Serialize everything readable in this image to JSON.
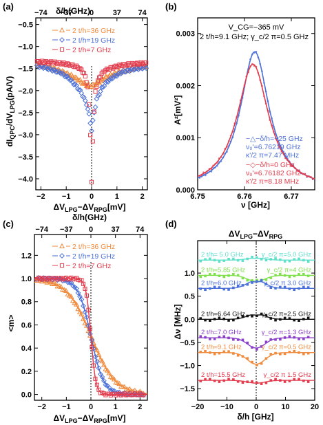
{
  "chart_data": [
    {
      "panel": "(a)",
      "type": "scatter",
      "xlabel": "ΔV_LPG−ΔV_RPG[mV]",
      "ylabel": "dI_QPC/dV_LPG(pA/V)",
      "top_label": "δ/h(GHz)",
      "top_ticks": [
        "−74",
        "−37",
        "0",
        "37",
        "74"
      ],
      "x_ticks": [
        "−2",
        "−1",
        "0",
        "1",
        "2"
      ],
      "y_ticks": [
        "−4.0",
        "−3.5",
        "−3.0",
        "−2.5",
        "−2.0",
        "−1.5",
        "−1.0",
        "−0.5"
      ],
      "xlim": [
        -2.2,
        2.2
      ],
      "ylim": [
        -4.25,
        -0.35
      ],
      "legend_position": "top-right",
      "series": [
        {
          "name": "2 t/h=36 GHz",
          "marker": "triangle",
          "color": "#f08a3c",
          "x": [
            -2.0,
            -1.6,
            -1.2,
            -0.8,
            -0.5,
            -0.3,
            -0.15,
            0,
            0.15,
            0.3,
            0.5,
            0.8,
            1.2,
            1.6,
            2.0
          ],
          "y": [
            -1.42,
            -1.48,
            -1.56,
            -1.66,
            -1.76,
            -1.84,
            -1.88,
            -1.9,
            -1.85,
            -1.8,
            -1.72,
            -1.64,
            -1.56,
            -1.5,
            -1.45
          ]
        },
        {
          "name": "2 t/h=19 GHz",
          "marker": "diamond",
          "color": "#4a6fd8",
          "x": [
            -2.0,
            -1.6,
            -1.2,
            -0.9,
            -0.6,
            -0.4,
            -0.2,
            -0.1,
            0,
            0.1,
            0.2,
            0.4,
            0.6,
            0.9,
            1.2,
            1.6,
            2.0
          ],
          "y": [
            -1.45,
            -1.52,
            -1.6,
            -1.72,
            -1.9,
            -2.05,
            -2.3,
            -2.55,
            -2.9,
            -2.5,
            -2.2,
            -1.95,
            -1.8,
            -1.68,
            -1.58,
            -1.52,
            -1.48
          ]
        },
        {
          "name": "2 t/h=7 GHz",
          "marker": "square",
          "color": "#e23b4c",
          "x": [
            -2.0,
            -1.6,
            -1.2,
            -0.8,
            -0.5,
            -0.3,
            -0.15,
            -0.07,
            0,
            0.07,
            0.15,
            0.3,
            0.5,
            0.8,
            1.2,
            1.6,
            2.0
          ],
          "y": [
            -1.35,
            -1.36,
            -1.38,
            -1.42,
            -1.48,
            -1.6,
            -1.9,
            -2.6,
            -4.05,
            -2.8,
            -2.0,
            -1.7,
            -1.55,
            -1.48,
            -1.42,
            -1.4,
            -1.38
          ]
        }
      ]
    },
    {
      "panel": "(b)",
      "type": "line",
      "xlabel": "ν [GHz]",
      "ylabel": "A²[mV²]",
      "x_ticks": [
        "6.75",
        "6.76",
        "6.77"
      ],
      "y_ticks": [
        "0.000",
        "0.001",
        "0.002",
        "0.003"
      ],
      "xlim": [
        6.75,
        6.775
      ],
      "ylim": [
        0,
        0.0033
      ],
      "annotation_lines": [
        "V_CG=−365 mV",
        "2 t/h=9.1 GHz; γ_c/2 π=0.5 GHz"
      ],
      "legend_position": "bottom-right",
      "series": [
        {
          "name": "−△−δ/h=−25 GHz",
          "color": "#4a6fd8",
          "center": 6.76219,
          "width_mhz": 7.47,
          "peak": 0.00265,
          "text_lines": [
            "−△−δ/h=−25 GHz",
            "ν₀'=6.76219 GHz",
            "κ'/2 π=7.47 MHz"
          ]
        },
        {
          "name": "−◇−δ/h=0 GHz",
          "color": "#e23b4c",
          "center": 6.76182,
          "width_mhz": 8.18,
          "peak": 0.00241,
          "text_lines": [
            "−◇−δ/h=0 GHz",
            "ν₀'=6.76182 GHz",
            "κ'/2 π=8.18 MHz"
          ]
        }
      ]
    },
    {
      "panel": "(c)",
      "type": "scatter",
      "xlabel": "ΔV_LPG−ΔV_RPG[mV]",
      "ylabel": "<m>",
      "top_label": "δ/h(GHz)",
      "top_ticks": [
        "−74",
        "−37",
        "0",
        "37",
        "74"
      ],
      "x_ticks": [
        "−2",
        "−1",
        "0",
        "1",
        "2"
      ],
      "y_ticks": [
        "0.0",
        "0.2",
        "0.4",
        "0.6",
        "0.8",
        "1.0",
        "1.2"
      ],
      "xlim": [
        -2.3,
        2.3
      ],
      "ylim": [
        -0.05,
        1.38
      ],
      "legend_position": "top-right",
      "series": [
        {
          "name": "2 t/h=36 GHz",
          "marker": "triangle",
          "color": "#f08a3c",
          "half_width_mv": 0.49
        },
        {
          "name": "2 t/h=19 GHz",
          "marker": "diamond",
          "color": "#4a6fd8",
          "half_width_mv": 0.26
        },
        {
          "name": "2 t/h=7 GHz",
          "marker": "square",
          "color": "#e23b4c",
          "half_width_mv": 0.1
        }
      ]
    },
    {
      "panel": "(d)",
      "type": "line",
      "title": "ΔV_LPG−ΔV_RPG",
      "xlabel": "δ/h [GHz]",
      "ylabel": "Δν [MHz]",
      "x_ticks": [
        "−20",
        "−10",
        "0",
        "10",
        "20"
      ],
      "y_ticks": [
        "−1.5",
        "−1.0",
        "−0.5",
        "0.0",
        "0.5",
        "1.0"
      ],
      "xlim": [
        -20,
        20
      ],
      "ylim": [
        -1.75,
        1.7
      ],
      "series": [
        {
          "label_left": "2 t/h= 5.0 GHz",
          "label_right": "γ_c/2 π=5.0 GHz",
          "color": "#5fe0cc",
          "offset": 1.28,
          "amp": 0.05
        },
        {
          "label_left": "2 t/h=5.85 GHz",
          "label_right": "γ_c/2 π=4 GHz",
          "color": "#7ee04a",
          "offset": 0.95,
          "amp": -0.13
        },
        {
          "label_left": "2 t/h=6.0 GHz",
          "label_right": "γ_c/2 π  3.0 GHz",
          "color": "#4a6fd8",
          "offset": 0.67,
          "amp": 0.18
        },
        {
          "label_left": "2 t/h=6.64 GHz",
          "label_right": "γ_c/2 π=2.5 GHz",
          "color": "#111111",
          "offset": 0.0,
          "amp": 0.12
        },
        {
          "label_left": "2 t/h=7.0 GHz",
          "label_right": "γ_c/2 π=1.3 GHz",
          "color": "#8b3fc8",
          "offset": -0.4,
          "amp": -0.22
        },
        {
          "label_left": "2 t/h=9.1 GHz",
          "label_right": "γ_c/2 π=0.5 GHz",
          "color": "#f08a3c",
          "offset": -0.72,
          "amp": -0.25
        },
        {
          "label_left": "2 t/h=15.5 GHz",
          "label_right": "γ_c/2 π  1.5 GHz",
          "color": "#e23b4c",
          "offset": -1.32,
          "amp": -0.06
        }
      ]
    }
  ]
}
